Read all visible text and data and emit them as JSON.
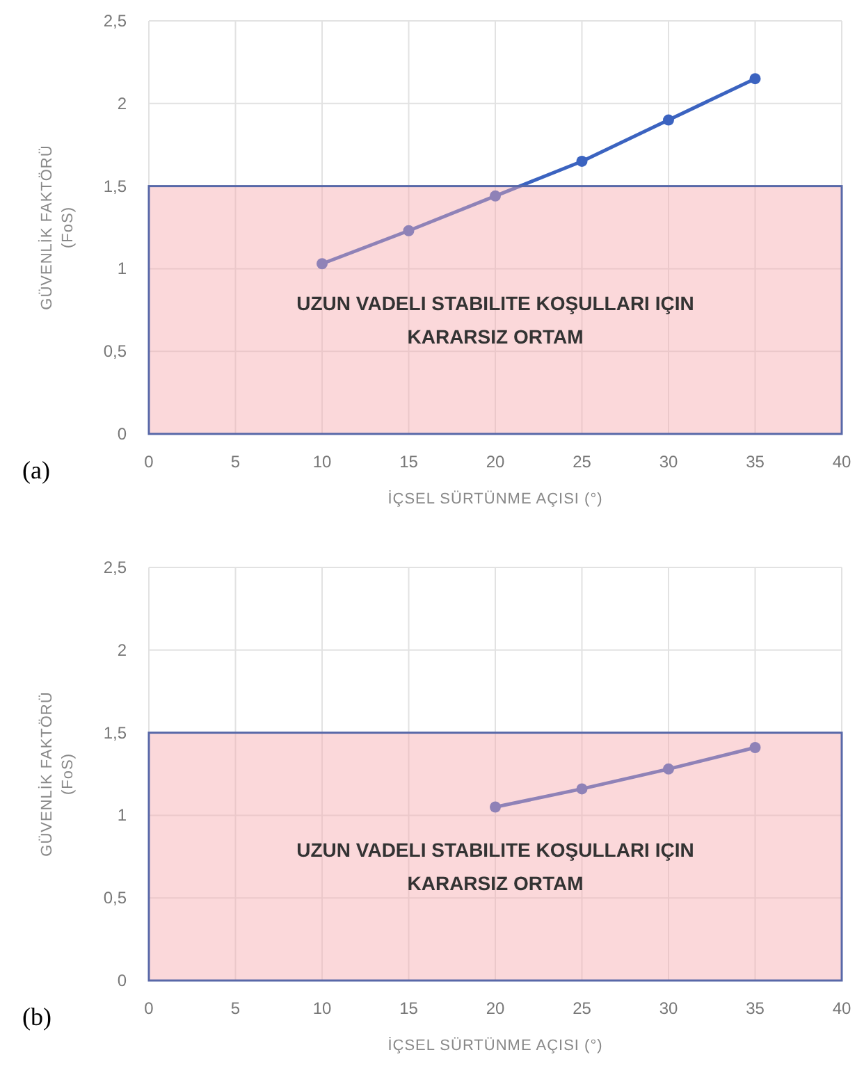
{
  "chart_data": [
    {
      "type": "line",
      "x": [
        10,
        15,
        20,
        25,
        30,
        35
      ],
      "series": [
        {
          "color": "#3b63c0",
          "values": [
            1.03,
            1.23,
            1.44,
            1.65,
            1.9,
            2.15
          ]
        }
      ],
      "xlim": [
        0,
        40
      ],
      "xticks": [
        0,
        5,
        10,
        15,
        20,
        25,
        30,
        35,
        40
      ],
      "ylim": [
        0,
        2.5
      ],
      "yticks": [
        {
          "value": 0,
          "label": "0"
        },
        {
          "value": 0.5,
          "label": "0,5"
        },
        {
          "value": 1,
          "label": "1"
        },
        {
          "value": 1.5,
          "label": "1,5"
        },
        {
          "value": 2,
          "label": "2"
        },
        {
          "value": 2.5,
          "label": "2,5"
        }
      ],
      "xlabel": "İÇSEL SÜRTÜNME AÇISI (°)",
      "ylabel": "GÜVENLİK FAKTÖRÜ\n(FoS)",
      "grid": true,
      "marker": "circle",
      "line_style": "solid",
      "bands": [
        {
          "axis": "y",
          "from": 0,
          "to": 1.5,
          "label": "UZUN VADELI STABILITE KOŞULLARI IÇIN\nKARARSIZ ORTAM",
          "color": "#f7a9ad"
        }
      ],
      "annotations": [
        "(a)"
      ]
    },
    {
      "type": "line",
      "x": [
        20,
        25,
        30,
        35
      ],
      "series": [
        {
          "color": "#3b63c0",
          "values": [
            1.05,
            1.16,
            1.28,
            1.41
          ]
        }
      ],
      "xlim": [
        0,
        40
      ],
      "xticks": [
        0,
        5,
        10,
        15,
        20,
        25,
        30,
        35,
        40
      ],
      "ylim": [
        0,
        2.5
      ],
      "yticks": [
        {
          "value": 0,
          "label": "0"
        },
        {
          "value": 0.5,
          "label": "0,5"
        },
        {
          "value": 1,
          "label": "1"
        },
        {
          "value": 1.5,
          "label": "1,5"
        },
        {
          "value": 2,
          "label": "2"
        },
        {
          "value": 2.5,
          "label": "2,5"
        }
      ],
      "xlabel": "İÇSEL SÜRTÜNME AÇISI (°)",
      "ylabel": "GÜVENLİK FAKTÖRÜ\n(FoS)",
      "grid": true,
      "marker": "circle",
      "line_style": "solid",
      "bands": [
        {
          "axis": "y",
          "from": 0,
          "to": 1.5,
          "label": "UZUN VADELI STABILITE KOŞULLARI IÇIN\nKARARSIZ ORTAM",
          "color": "#f7a9ad"
        }
      ],
      "annotations": [
        "(b)"
      ]
    }
  ]
}
